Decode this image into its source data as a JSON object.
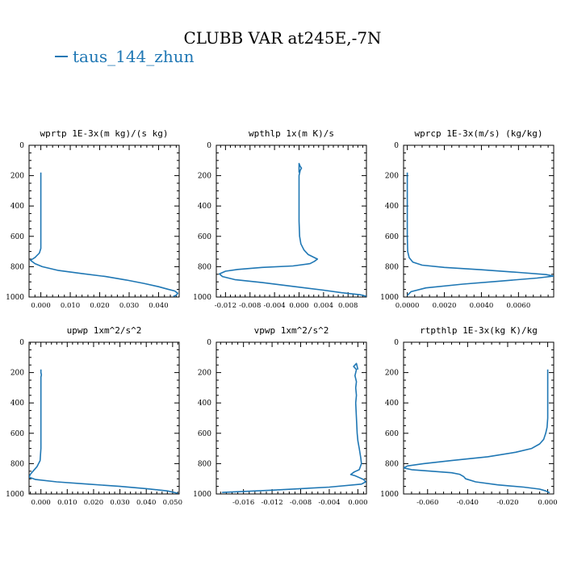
{
  "figure": {
    "title": "CLUBB VAR at245E,-7N",
    "legend": "taus_144_zhun",
    "series_color": "#1f77b4"
  },
  "chart_data": [
    {
      "type": "line",
      "title": "wprtp  1E-3x(m kg)/(s kg)",
      "xlim": [
        -0.004,
        0.047
      ],
      "ylim": [
        1000,
        0
      ],
      "xticks": [
        "0.000",
        "0.010",
        "0.020",
        "0.030",
        "0.040"
      ],
      "xtick_values": [
        0,
        0.01,
        0.02,
        0.03,
        0.04
      ],
      "yticks": [
        "0",
        "200",
        "400",
        "600",
        "800",
        "1000"
      ],
      "series": [
        {
          "values": [
            [
              0,
              180
            ],
            [
              0,
              400
            ],
            [
              0,
              600
            ],
            [
              0,
              680
            ],
            [
              -0.0005,
              710
            ],
            [
              -0.002,
              740
            ],
            [
              -0.0035,
              758
            ],
            [
              -0.002,
              780
            ],
            [
              0.0005,
              800
            ],
            [
              0.006,
              825
            ],
            [
              0.014,
              845
            ],
            [
              0.022,
              865
            ],
            [
              0.029,
              888
            ],
            [
              0.035,
              910
            ],
            [
              0.04,
              932
            ],
            [
              0.043,
              948
            ],
            [
              0.0455,
              960
            ],
            [
              0.0465,
              975
            ],
            [
              0.046,
              988
            ],
            [
              0.045,
              995
            ]
          ]
        }
      ]
    },
    {
      "type": "line",
      "title": "wpthlp  1x(m K)/s",
      "xlim": [
        -0.0135,
        0.011
      ],
      "ylim": [
        1000,
        0
      ],
      "xticks": [
        "-0.012",
        "-0.008",
        "-0.004",
        "0.000",
        "0.004",
        "0.008"
      ],
      "xtick_values": [
        -0.012,
        -0.008,
        -0.004,
        0,
        0.004,
        0.008
      ],
      "yticks": [
        "0",
        "200",
        "400",
        "600",
        "800",
        "1000"
      ],
      "series": [
        {
          "values": [
            [
              0,
              180
            ],
            [
              0,
              120
            ],
            [
              0.0002,
              140
            ],
            [
              0.0004,
              150
            ],
            [
              0.0002,
              165
            ],
            [
              0,
              200
            ],
            [
              0,
              300
            ],
            [
              0,
              400
            ],
            [
              0,
              500
            ],
            [
              0.0001,
              600
            ],
            [
              0.0003,
              650
            ],
            [
              0.0008,
              690
            ],
            [
              0.0015,
              720
            ],
            [
              0.0025,
              740
            ],
            [
              0.003,
              750
            ],
            [
              0.0025,
              765
            ],
            [
              0.0018,
              780
            ],
            [
              -0.001,
              795
            ],
            [
              -0.006,
              805
            ],
            [
              -0.01,
              818
            ],
            [
              -0.012,
              830
            ],
            [
              -0.013,
              848
            ],
            [
              -0.0125,
              865
            ],
            [
              -0.0105,
              885
            ],
            [
              -0.006,
              905
            ],
            [
              -0.001,
              930
            ],
            [
              0.004,
              955
            ],
            [
              0.007,
              972
            ],
            [
              0.01,
              985
            ],
            [
              0.011,
              995
            ]
          ]
        }
      ]
    },
    {
      "type": "line",
      "title": "wprcp  1E-3x(m/s) (kg/kg)",
      "xlim": [
        -0.0002,
        0.0079
      ],
      "ylim": [
        1000,
        0
      ],
      "xticks": [
        "0.0000",
        "0.0020",
        "0.0040",
        "0.0060"
      ],
      "xtick_values": [
        0,
        0.002,
        0.004,
        0.006
      ],
      "yticks": [
        "0",
        "200",
        "400",
        "600",
        "800",
        "1000"
      ],
      "series": [
        {
          "values": [
            [
              0,
              180
            ],
            [
              0,
              400
            ],
            [
              0,
              600
            ],
            [
              2e-05,
              700
            ],
            [
              0.0001,
              740
            ],
            [
              0.0003,
              770
            ],
            [
              0.0008,
              790
            ],
            [
              0.002,
              805
            ],
            [
              0.004,
              820
            ],
            [
              0.006,
              838
            ],
            [
              0.0075,
              852
            ],
            [
              0.0079,
              862
            ],
            [
              0.007,
              875
            ],
            [
              0.005,
              895
            ],
            [
              0.003,
              915
            ],
            [
              0.001,
              940
            ],
            [
              0.0002,
              965
            ],
            [
              0,
              990
            ]
          ]
        }
      ]
    },
    {
      "type": "line",
      "title": "upwp  1xm^2/s^2",
      "xlim": [
        -0.0045,
        0.0525
      ],
      "ylim": [
        1000,
        0
      ],
      "xticks": [
        "0.000",
        "0.010",
        "0.020",
        "0.030",
        "0.040",
        "0.050"
      ],
      "xtick_values": [
        0,
        0.01,
        0.02,
        0.03,
        0.04,
        0.05
      ],
      "yticks": [
        "0",
        "200",
        "400",
        "600",
        "800",
        "1000"
      ],
      "series": [
        {
          "values": [
            [
              0,
              180
            ],
            [
              0,
              200
            ],
            [
              0.0002,
              215
            ],
            [
              0,
              230
            ],
            [
              0,
              300
            ],
            [
              0,
              400
            ],
            [
              0,
              500
            ],
            [
              0,
              600
            ],
            [
              0,
              700
            ],
            [
              -0.0003,
              780
            ],
            [
              -0.0015,
              820
            ],
            [
              -0.003,
              850
            ],
            [
              -0.004,
              870
            ],
            [
              -0.0045,
              890
            ],
            [
              -0.002,
              905
            ],
            [
              0.006,
              920
            ],
            [
              0.018,
              935
            ],
            [
              0.03,
              950
            ],
            [
              0.04,
              965
            ],
            [
              0.048,
              980
            ],
            [
              0.052,
              995
            ]
          ]
        }
      ]
    },
    {
      "type": "line",
      "title": "vpwp  1xm^2/s^2",
      "xlim": [
        -0.0198,
        0.0012
      ],
      "ylim": [
        1000,
        0
      ],
      "xticks": [
        "-0.016",
        "-0.012",
        "-0.008",
        "-0.004",
        "0.000"
      ],
      "xtick_values": [
        -0.016,
        -0.012,
        -0.008,
        -0.004,
        0
      ],
      "yticks": [
        "0",
        "200",
        "400",
        "600",
        "800",
        "1000"
      ],
      "series": [
        {
          "values": [
            [
              0,
              180
            ],
            [
              -0.0002,
              140
            ],
            [
              -0.0006,
              160
            ],
            [
              -0.0002,
              180
            ],
            [
              -0.0004,
              220
            ],
            [
              -0.0002,
              260
            ],
            [
              -0.0003,
              300
            ],
            [
              -0.0002,
              350
            ],
            [
              -0.0003,
              400
            ],
            [
              -0.0002,
              500
            ],
            [
              -0.0001,
              600
            ],
            [
              0,
              650
            ],
            [
              0.0002,
              700
            ],
            [
              0.0004,
              760
            ],
            [
              0.0005,
              800
            ],
            [
              0.0002,
              840
            ],
            [
              -0.0005,
              855
            ],
            [
              -0.001,
              872
            ],
            [
              -0.0004,
              880
            ],
            [
              0.0002,
              892
            ],
            [
              0.0008,
              905
            ],
            [
              0.0011,
              920
            ],
            [
              0.0005,
              935
            ],
            [
              -0.004,
              955
            ],
            [
              -0.012,
              975
            ],
            [
              -0.019,
              990
            ]
          ]
        }
      ]
    },
    {
      "type": "line",
      "title": "rtpthlp  1E-3x(kg K)/kg",
      "xlim": [
        -0.072,
        0.003
      ],
      "ylim": [
        1000,
        0
      ],
      "xticks": [
        "-0.060",
        "-0.040",
        "-0.020",
        "0.000"
      ],
      "xtick_values": [
        -0.06,
        -0.04,
        -0.02,
        0
      ],
      "yticks": [
        "0",
        "200",
        "400",
        "600",
        "800",
        "1000"
      ],
      "series": [
        {
          "values": [
            [
              0,
              180
            ],
            [
              0,
              400
            ],
            [
              0,
              500
            ],
            [
              -0.0003,
              560
            ],
            [
              -0.001,
              600
            ],
            [
              -0.002,
              640
            ],
            [
              -0.004,
              670
            ],
            [
              -0.008,
              700
            ],
            [
              -0.016,
              725
            ],
            [
              -0.03,
              755
            ],
            [
              -0.048,
              780
            ],
            [
              -0.062,
              800
            ],
            [
              -0.07,
              815
            ],
            [
              -0.072,
              828
            ],
            [
              -0.068,
              840
            ],
            [
              -0.058,
              850
            ],
            [
              -0.048,
              860
            ],
            [
              -0.044,
              870
            ],
            [
              -0.042,
              885
            ],
            [
              -0.041,
              900
            ],
            [
              -0.036,
              920
            ],
            [
              -0.025,
              940
            ],
            [
              -0.012,
              955
            ],
            [
              -0.004,
              968
            ],
            [
              -0.001,
              980
            ],
            [
              0.001,
              992
            ]
          ]
        }
      ]
    }
  ]
}
